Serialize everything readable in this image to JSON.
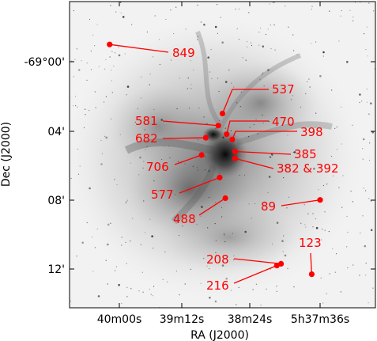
{
  "chart_data": {
    "type": "scatter",
    "background": "inverted grayscale astronomical image",
    "xlabel": "RA (J2000)",
    "ylabel": "Dec (J2000)",
    "x_ticks": [
      "40m00s",
      "39m12s",
      "38m24s",
      "5h37m36s"
    ],
    "y_ticks": [
      "-69°00'",
      "04'",
      "08'",
      "12'"
    ],
    "marker_color": "#ff0000",
    "sources": [
      {
        "label": "849",
        "ra": "5h40m07s",
        "dec": "-68°59'"
      },
      {
        "label": "537",
        "ra": "5h38m46s",
        "dec": "-69°03'"
      },
      {
        "label": "581",
        "ra": "5h38m49s",
        "dec": "-69°03.7'"
      },
      {
        "label": "470",
        "ra": "5h38m43s",
        "dec": "-69°04.2'"
      },
      {
        "label": "398",
        "ra": "5h38m39s",
        "dec": "-69°04.5'"
      },
      {
        "label": "682",
        "ra": "5h38m58s",
        "dec": "-69°04.4'"
      },
      {
        "label": "385",
        "ra": "5h38m37s",
        "dec": "-69°05.2'"
      },
      {
        "label": "382 & 392",
        "ra": "5h38m37s",
        "dec": "-69°05.6'"
      },
      {
        "label": "706",
        "ra": "5h39m01s",
        "dec": "-69°05.4'"
      },
      {
        "label": "577",
        "ra": "5h38m48s",
        "dec": "-69°06.7'"
      },
      {
        "label": "488",
        "ra": "5h38m44s",
        "dec": "-69°07.9'"
      },
      {
        "label": "89",
        "ra": "5h37m36s",
        "dec": "-69°08'"
      },
      {
        "label": "123",
        "ra": "5h37m42s",
        "dec": "-69°12.3'"
      },
      {
        "label": "208",
        "ra": "5h38m04s",
        "dec": "-69°11.7'"
      },
      {
        "label": "216",
        "ra": "5h38m07s",
        "dec": "-69°11.8'"
      }
    ]
  }
}
